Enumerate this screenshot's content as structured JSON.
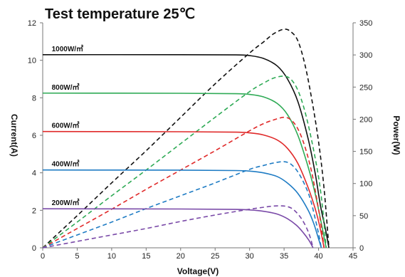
{
  "chart_data": {
    "type": "line",
    "title": "Test temperature  25℃",
    "xlabel": "Voltage(V)",
    "ylabel_left": "Current(A)",
    "ylabel_right": "Power(W)",
    "xlim": [
      0,
      45
    ],
    "ylim_left": [
      0,
      12
    ],
    "ylim_right": [
      0,
      350
    ],
    "x_ticks": [
      "0",
      "5",
      "10",
      "15",
      "20",
      "25",
      "30",
      "35",
      "40",
      "45"
    ],
    "y_left_ticks": [
      "0",
      "2",
      "4",
      "6",
      "8",
      "10",
      "12"
    ],
    "y_right_ticks": [
      "0",
      "50",
      "100",
      "150",
      "200",
      "250",
      "300",
      "350"
    ],
    "grid": false,
    "series": [
      {
        "name": "1000W/㎡",
        "color": "#111111",
        "current": [
          [
            0,
            10.3
          ],
          [
            20,
            10.3
          ],
          [
            28,
            10.29
          ],
          [
            30,
            10.25
          ],
          [
            32,
            10.1
          ],
          [
            34,
            9.7
          ],
          [
            35.5,
            9.0
          ],
          [
            37,
            7.8
          ],
          [
            38.5,
            5.8
          ],
          [
            39.5,
            4.0
          ],
          [
            40.3,
            2.2
          ],
          [
            41,
            1.0
          ],
          [
            41.5,
            0
          ]
        ],
        "power": [
          [
            0,
            0
          ],
          [
            5,
            50
          ],
          [
            10,
            101
          ],
          [
            15,
            151
          ],
          [
            20,
            203
          ],
          [
            25,
            255
          ],
          [
            30,
            303
          ],
          [
            32,
            320
          ],
          [
            33.5,
            333
          ],
          [
            35,
            340
          ],
          [
            36,
            336
          ],
          [
            37,
            322
          ],
          [
            38,
            286
          ],
          [
            39,
            232
          ],
          [
            40,
            165
          ],
          [
            40.8,
            92
          ],
          [
            41.5,
            0
          ]
        ]
      },
      {
        "name": "800W/㎡",
        "color": "#2eaa55",
        "current": [
          [
            0,
            8.25
          ],
          [
            20,
            8.24
          ],
          [
            28,
            8.22
          ],
          [
            30,
            8.18
          ],
          [
            32,
            8.05
          ],
          [
            34,
            7.7
          ],
          [
            35.5,
            7.1
          ],
          [
            37,
            6.0
          ],
          [
            38.5,
            4.3
          ],
          [
            39.5,
            2.9
          ],
          [
            40.3,
            1.5
          ],
          [
            41.1,
            0
          ]
        ],
        "power": [
          [
            0,
            0
          ],
          [
            5,
            40
          ],
          [
            10,
            81
          ],
          [
            15,
            121
          ],
          [
            20,
            162
          ],
          [
            25,
            203
          ],
          [
            30,
            243
          ],
          [
            32,
            256
          ],
          [
            33.5,
            264
          ],
          [
            35,
            267
          ],
          [
            36,
            262
          ],
          [
            37,
            245
          ],
          [
            38,
            213
          ],
          [
            39,
            167
          ],
          [
            40,
            110
          ],
          [
            40.6,
            60
          ],
          [
            41.1,
            0
          ]
        ]
      },
      {
        "name": "600W/㎡",
        "color": "#e02a2a",
        "current": [
          [
            0,
            6.2
          ],
          [
            20,
            6.19
          ],
          [
            28,
            6.17
          ],
          [
            30,
            6.13
          ],
          [
            32,
            6.02
          ],
          [
            34,
            5.75
          ],
          [
            35.5,
            5.3
          ],
          [
            37,
            4.5
          ],
          [
            38.5,
            3.2
          ],
          [
            39.5,
            2.1
          ],
          [
            40.2,
            1.1
          ],
          [
            40.8,
            0
          ]
        ],
        "power": [
          [
            0,
            0
          ],
          [
            5,
            30
          ],
          [
            10,
            60
          ],
          [
            15,
            91
          ],
          [
            20,
            121
          ],
          [
            25,
            151
          ],
          [
            30,
            182
          ],
          [
            32,
            193
          ],
          [
            33.5,
            199
          ],
          [
            35,
            203
          ],
          [
            36,
            199
          ],
          [
            37,
            185
          ],
          [
            38,
            158
          ],
          [
            39,
            118
          ],
          [
            39.8,
            72
          ],
          [
            40.3,
            40
          ],
          [
            40.8,
            0
          ]
        ]
      },
      {
        "name": "400W/㎡",
        "color": "#1f7cc4",
        "current": [
          [
            0,
            4.15
          ],
          [
            20,
            4.14
          ],
          [
            28,
            4.12
          ],
          [
            30,
            4.09
          ],
          [
            32,
            4.0
          ],
          [
            34,
            3.8
          ],
          [
            35.5,
            3.45
          ],
          [
            37,
            2.9
          ],
          [
            38.5,
            2.0
          ],
          [
            39.3,
            1.3
          ],
          [
            39.9,
            0.6
          ],
          [
            40.4,
            0
          ]
        ],
        "power": [
          [
            0,
            0
          ],
          [
            5,
            20
          ],
          [
            10,
            40
          ],
          [
            15,
            61
          ],
          [
            20,
            81
          ],
          [
            25,
            101
          ],
          [
            30,
            122
          ],
          [
            32,
            128
          ],
          [
            33.5,
            132
          ],
          [
            35,
            134
          ],
          [
            36,
            130
          ],
          [
            37,
            118
          ],
          [
            38,
            98
          ],
          [
            38.8,
            76
          ],
          [
            39.5,
            46
          ],
          [
            40,
            22
          ],
          [
            40.4,
            0
          ]
        ]
      },
      {
        "name": "200W/㎡",
        "color": "#7a4aa8",
        "current": [
          [
            0,
            2.08
          ],
          [
            20,
            2.07
          ],
          [
            28,
            2.05
          ],
          [
            30,
            2.02
          ],
          [
            32,
            1.95
          ],
          [
            34,
            1.8
          ],
          [
            35.5,
            1.55
          ],
          [
            36.8,
            1.2
          ],
          [
            37.8,
            0.8
          ],
          [
            38.6,
            0.4
          ],
          [
            39.2,
            0
          ]
        ],
        "power": [
          [
            0,
            0
          ],
          [
            5,
            10
          ],
          [
            10,
            20
          ],
          [
            15,
            30
          ],
          [
            20,
            41
          ],
          [
            25,
            51
          ],
          [
            30,
            60
          ],
          [
            32,
            63
          ],
          [
            33.5,
            65
          ],
          [
            35,
            65
          ],
          [
            36,
            62
          ],
          [
            36.8,
            55
          ],
          [
            37.6,
            44
          ],
          [
            38.3,
            30
          ],
          [
            38.8,
            16
          ],
          [
            39.2,
            0
          ]
        ]
      }
    ]
  }
}
